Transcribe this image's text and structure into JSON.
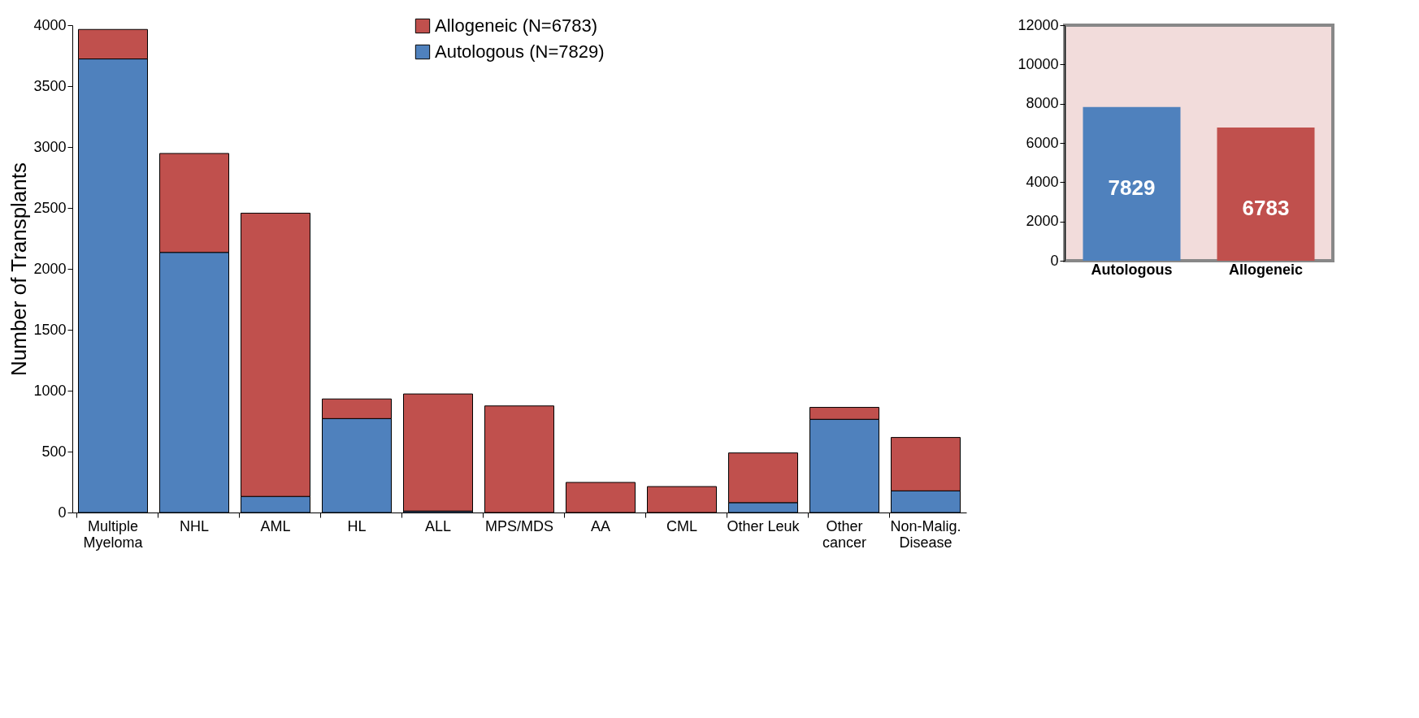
{
  "chart_data": [
    {
      "type": "bar",
      "stacked": true,
      "ylabel": "Number of Transplants",
      "categories": [
        "Multiple Myeloma",
        "NHL",
        "AML",
        "HL",
        "ALL",
        "MPS/MDS",
        "AA",
        "CML",
        "Other Leuk",
        "Other cancer",
        "Non-Malig. Disease"
      ],
      "series": [
        {
          "name": "Autologous (N=7829)",
          "color": "#4f81bd",
          "values": [
            3723,
            2135,
            132,
            771,
            12,
            0,
            0,
            0,
            81,
            765,
            178
          ]
        },
        {
          "name": "Allogeneic (N=6783)",
          "color": "#c0504d",
          "values": [
            242,
            812,
            2325,
            161,
            961,
            875,
            247,
            213,
            408,
            98,
            438
          ]
        }
      ],
      "ylim": [
        0,
        4000
      ],
      "yticks": [
        0,
        500,
        1000,
        1500,
        2000,
        2500,
        3000,
        3500,
        4000
      ],
      "grid": false,
      "legend": "top"
    },
    {
      "type": "bar",
      "categories": [
        "Autologous",
        "Allogeneic"
      ],
      "values": [
        7829,
        6783
      ],
      "colors": [
        "#4f81bd",
        "#c0504d"
      ],
      "data_labels": true,
      "ylim": [
        0,
        12000
      ],
      "yticks": [
        0,
        2000,
        4000,
        6000,
        8000,
        10000,
        12000
      ],
      "grid": false
    }
  ]
}
